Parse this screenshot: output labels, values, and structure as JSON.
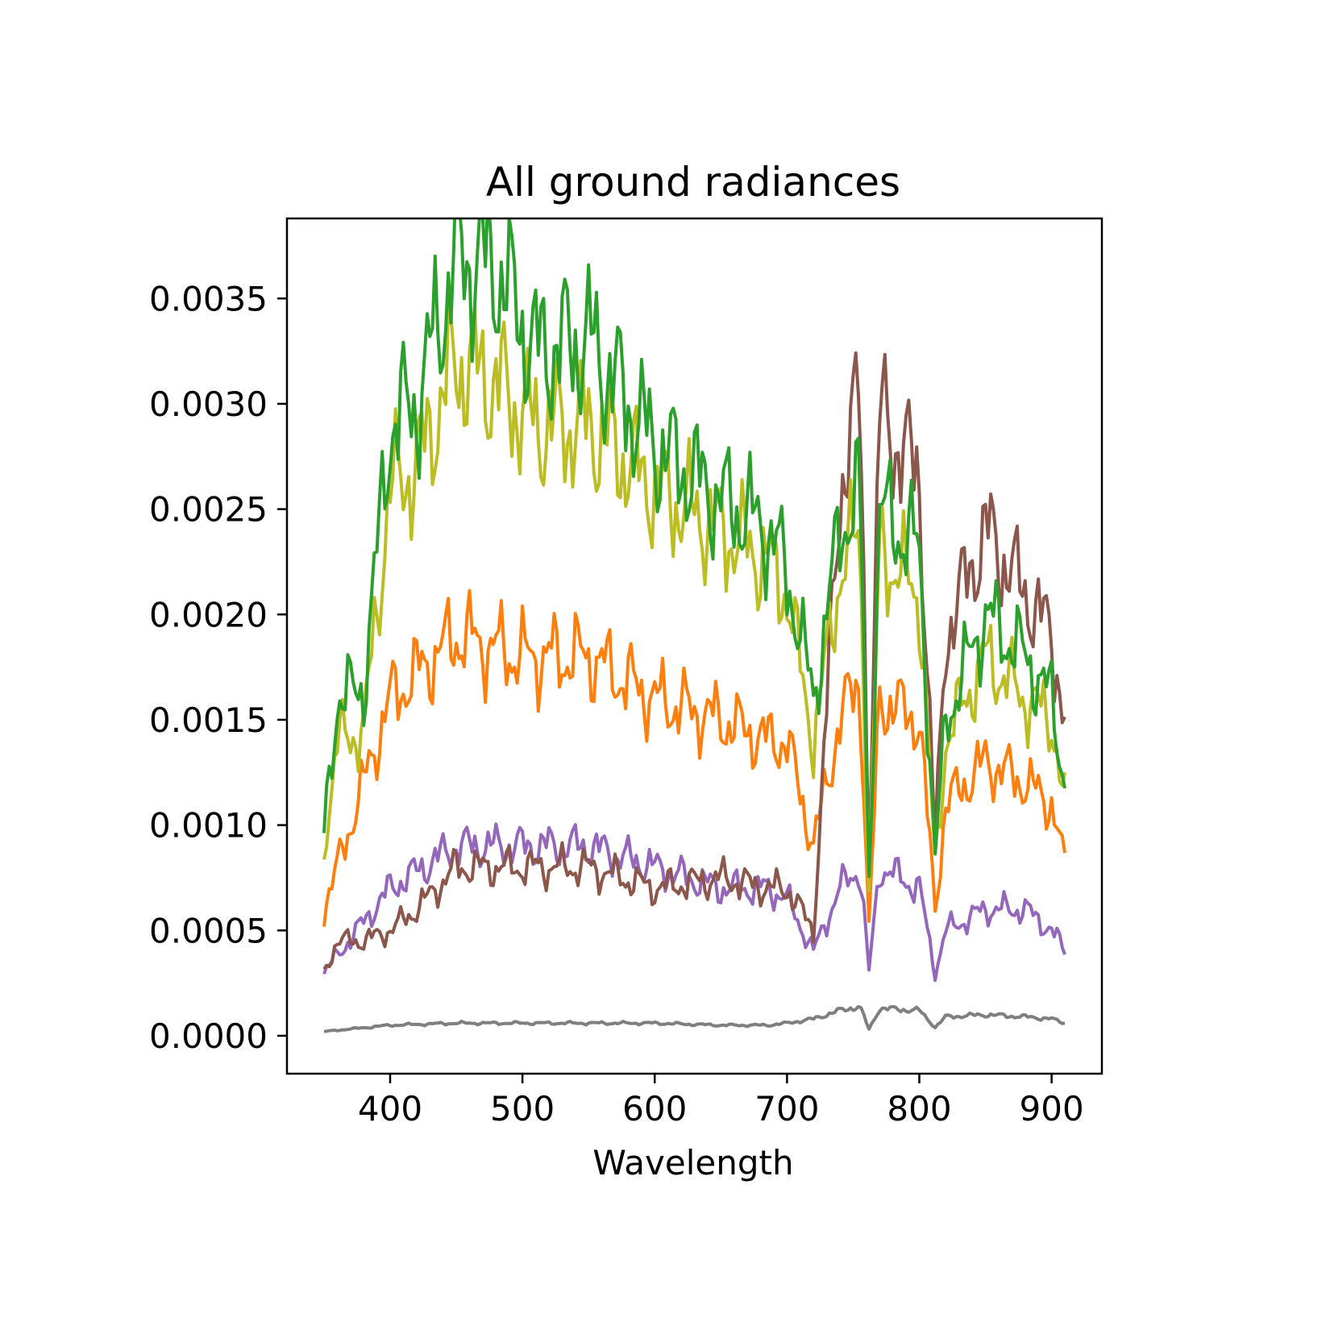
{
  "chart_data": {
    "type": "line",
    "title": "All ground radiances",
    "xlabel": "Wavelength",
    "ylabel": "",
    "xlim": [
      322,
      938
    ],
    "ylim": [
      -0.00018,
      0.00388
    ],
    "x_range": [
      350,
      910
    ],
    "xticks": [
      400,
      500,
      600,
      700,
      800,
      900
    ],
    "xtick_labels": [
      "400",
      "500",
      "600",
      "700",
      "800",
      "900"
    ],
    "yticks": [
      0,
      0.0005,
      0.001,
      0.0015,
      0.002,
      0.0025,
      0.003,
      0.0035
    ],
    "ytick_labels": [
      "0.0000",
      "0.0005",
      "0.0010",
      "0.0015",
      "0.0020",
      "0.0025",
      "0.0030",
      "0.0035"
    ],
    "grid": false,
    "legend": "none",
    "series_colors": [
      "#1f77b4",
      "#ff7f0e",
      "#2ca02c",
      "#d62728",
      "#9467bd",
      "#8c564b",
      "#e377c2",
      "#7f7f7f",
      "#bcbd22",
      "#17becf"
    ],
    "series_count_estimate": 300,
    "series": [
      {
        "x": [
          350,
          360,
          380,
          400,
          420,
          450,
          480,
          510,
          550,
          600,
          650,
          686,
          700,
          720,
          740,
          755,
          762,
          770,
          800,
          812,
          820,
          850,
          880,
          900,
          910
        ],
        "y": [
          0.00095,
          0.0016,
          0.00165,
          0.0029,
          0.003,
          0.0037,
          0.00365,
          0.00325,
          0.0033,
          0.0028,
          0.00255,
          0.0024,
          0.0022,
          0.0016,
          0.0024,
          0.0026,
          0.00075,
          0.0025,
          0.0023,
          0.00085,
          0.0015,
          0.002,
          0.0018,
          0.0016,
          0.0012
        ]
      },
      {
        "x": [
          350,
          360,
          380,
          400,
          420,
          450,
          480,
          510,
          550,
          600,
          650,
          686,
          700,
          720,
          740,
          755,
          762,
          770,
          800,
          812,
          820,
          850,
          880,
          900,
          910
        ],
        "y": [
          0.0003,
          0.00045,
          0.00045,
          0.0005,
          0.0006,
          0.0008,
          0.0008,
          0.0008,
          0.0008,
          0.0007,
          0.00075,
          0.0007,
          0.0007,
          0.0005,
          0.0026,
          0.00305,
          0.0009,
          0.00295,
          0.00265,
          0.0009,
          0.0019,
          0.0024,
          0.0021,
          0.0019,
          0.0015
        ]
      },
      {
        "x": [
          350,
          360,
          380,
          400,
          420,
          450,
          480,
          510,
          550,
          600,
          650,
          686,
          700,
          720,
          740,
          755,
          762,
          770,
          800,
          812,
          820,
          850,
          880,
          900,
          910
        ],
        "y": [
          0.0009,
          0.0014,
          0.00145,
          0.0026,
          0.0027,
          0.0032,
          0.0031,
          0.0029,
          0.0029,
          0.0026,
          0.0024,
          0.00225,
          0.0021,
          0.0014,
          0.0022,
          0.0024,
          0.0007,
          0.0023,
          0.0021,
          0.0008,
          0.0014,
          0.0018,
          0.0016,
          0.0015,
          0.0011
        ]
      },
      {
        "x": [
          350,
          400,
          450,
          500,
          550,
          600,
          650,
          686,
          700,
          720,
          740,
          755,
          762,
          770,
          800,
          812,
          820,
          850,
          880,
          900,
          910
        ],
        "y": [
          0.0006,
          0.0016,
          0.0019,
          0.0018,
          0.0018,
          0.0016,
          0.0015,
          0.0014,
          0.0014,
          0.0009,
          0.0015,
          0.0017,
          0.0005,
          0.0016,
          0.0015,
          0.0006,
          0.0011,
          0.0013,
          0.0012,
          0.0011,
          0.0008
        ]
      },
      {
        "x": [
          350,
          400,
          450,
          500,
          550,
          600,
          650,
          686,
          700,
          720,
          740,
          755,
          762,
          770,
          800,
          812,
          820,
          850,
          880,
          900,
          910
        ],
        "y": [
          0.0003,
          0.0007,
          0.0009,
          0.0009,
          0.0009,
          0.0008,
          0.0007,
          0.0007,
          0.00065,
          0.0004,
          0.0007,
          0.0008,
          0.0003,
          0.0008,
          0.0007,
          0.0003,
          0.0005,
          0.0006,
          0.0006,
          0.0005,
          0.0004
        ]
      },
      {
        "x": [
          350,
          400,
          450,
          500,
          550,
          600,
          650,
          686,
          700,
          720,
          740,
          755,
          762,
          770,
          800,
          812,
          820,
          850,
          880,
          900,
          910
        ],
        "y": [
          2e-05,
          5e-05,
          6e-05,
          6e-05,
          6e-05,
          6e-05,
          5e-05,
          5e-05,
          6e-05,
          8e-05,
          0.00012,
          0.00014,
          3e-05,
          0.00013,
          0.00012,
          4e-05,
          9e-05,
          0.0001,
          9e-05,
          8e-05,
          6e-05
        ]
      }
    ]
  }
}
